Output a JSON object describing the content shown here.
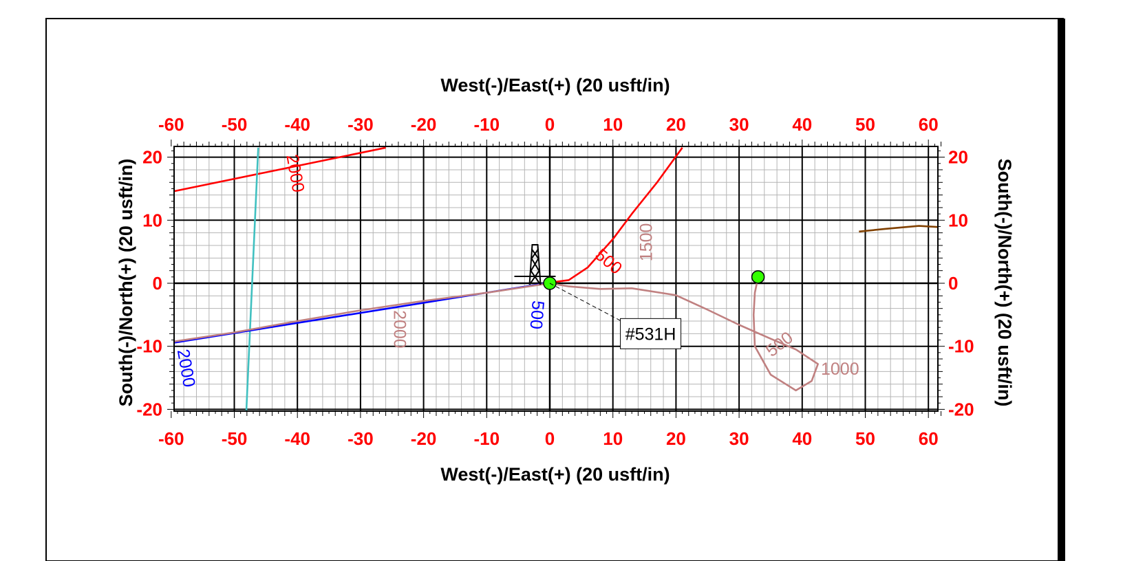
{
  "chart_data": {
    "type": "line",
    "xlabel_top": "West(-)/East(+) (20 usft/in)",
    "xlabel_bottom": "West(-)/East(+) (20 usft/in)",
    "ylabel_left": "South(-)/North(+) (20 usft/in)",
    "ylabel_right": "South(-)/North(+) (20 usft/in)",
    "xlim": [
      -60,
      62
    ],
    "ylim": [
      -20.5,
      21.5
    ],
    "x_ticks": [
      -60,
      -50,
      -40,
      -30,
      -20,
      -10,
      0,
      10,
      20,
      30,
      40,
      50,
      60
    ],
    "y_ticks": [
      -20,
      -10,
      0,
      10,
      20
    ],
    "x_tick_labels": [
      "-60",
      "-50",
      "-40",
      "-30",
      "-20",
      "-10",
      "0",
      "10",
      "20",
      "30",
      "40",
      "50",
      "60"
    ],
    "y_tick_labels": [
      "-20",
      "-10",
      "0",
      "10",
      "20"
    ],
    "grid": true,
    "colors": {
      "tick_labels": "#ff0000",
      "major_grid": "#000000",
      "minor_grid": "#b4b4b4"
    },
    "series": [
      {
        "color": "#ff0000",
        "points": [
          [
            -60,
            14.5
          ],
          [
            -26,
            21.5
          ]
        ],
        "md_labels": [
          {
            "text": "2000",
            "x": -40.5,
            "y": 17.4,
            "rot": 80
          }
        ]
      },
      {
        "color": "#ff0000",
        "points": [
          [
            0,
            0.1
          ],
          [
            3,
            0.5
          ],
          [
            6,
            2.5
          ],
          [
            10,
            7
          ],
          [
            13,
            11
          ],
          [
            17,
            16
          ],
          [
            21,
            21.5
          ]
        ],
        "md_labels": [
          {
            "text": "500",
            "x": 9.2,
            "y": 3.3,
            "rot": 40
          }
        ]
      },
      {
        "color": "#40c0c0",
        "points": [
          [
            -46.2,
            21.5
          ],
          [
            -48.1,
            -20.5
          ]
        ],
        "md_labels": []
      },
      {
        "color": "#0000ff",
        "points": [
          [
            0,
            0.1
          ],
          [
            -60,
            -9.5
          ]
        ],
        "md_labels": [
          {
            "text": "500",
            "x": -2.2,
            "y": -5,
            "rot": 95
          },
          {
            "text": "2000",
            "x": -57.8,
            "y": -13.5,
            "rot": 80
          }
        ]
      },
      {
        "color": "#c08080",
        "points": [
          [
            0,
            0
          ],
          [
            -10,
            -1.5
          ],
          [
            -20,
            -2.8
          ],
          [
            -30,
            -4.3
          ],
          [
            -40,
            -6
          ],
          [
            -50,
            -7.8
          ],
          [
            -60,
            -9.3
          ]
        ],
        "md_labels": [
          {
            "text": "2000",
            "x": -24,
            "y": -7.3,
            "rot": 90
          }
        ]
      },
      {
        "color": "#c08080",
        "points": [
          [
            0,
            0
          ],
          [
            3,
            -0.5
          ],
          [
            8,
            -0.9
          ],
          [
            13,
            -0.8
          ],
          [
            20,
            -1.9
          ],
          [
            25,
            -4.2
          ],
          [
            30,
            -6.6
          ],
          [
            35,
            -8.8
          ],
          [
            39,
            -10.5
          ],
          [
            42.5,
            -12.8
          ],
          [
            41.5,
            -15.5
          ],
          [
            39,
            -17
          ],
          [
            35,
            -14.5
          ],
          [
            32.5,
            -10
          ],
          [
            32.3,
            -5
          ],
          [
            32.5,
            -1.5
          ],
          [
            33,
            0.9
          ]
        ],
        "md_labels": [
          {
            "text": "1500",
            "x": 15.5,
            "y": 6.5,
            "rot": -90
          },
          {
            "text": "500",
            "x": 36.5,
            "y": -9.8,
            "rot": -38
          },
          {
            "text": "1000",
            "x": 46,
            "y": -13.8,
            "rot": 0
          }
        ]
      },
      {
        "color": "#804000",
        "points": [
          [
            49,
            8.2
          ],
          [
            53,
            8.6
          ],
          [
            58.5,
            9.1
          ],
          [
            62,
            8.9
          ]
        ],
        "md_labels": []
      }
    ],
    "markers": [
      {
        "x": 0,
        "y": 0,
        "color": "#33ff00"
      },
      {
        "x": 33,
        "y": 1,
        "color": "#33ff00"
      }
    ],
    "well_label": {
      "text": "#531H",
      "x": 13.8,
      "y": -8,
      "anchor": [
        0,
        0
      ]
    },
    "rig_symbol": {
      "x": -3,
      "y": 0
    }
  }
}
